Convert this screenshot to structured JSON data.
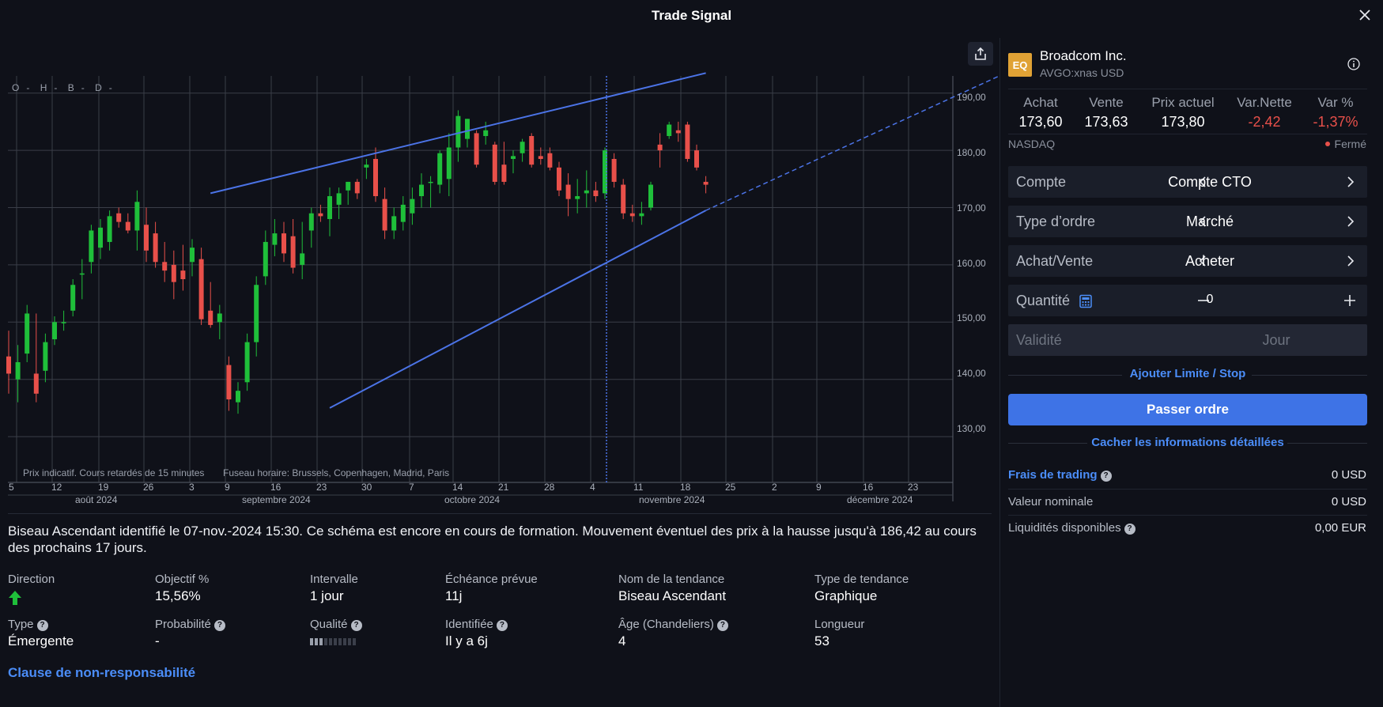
{
  "window": {
    "title": "Trade Signal"
  },
  "chart": {
    "ohlc_labels": [
      "O",
      "H",
      "B",
      "D"
    ],
    "note_delayed": "Prix indicatif. Cours retardés de 15 minutes",
    "note_timezone": "Fuseau horaire: Brussels, Copenhagen, Madrid, Paris",
    "y_ticks": [
      "190,00",
      "180,00",
      "170,00",
      "160,00",
      "150,00",
      "140,00",
      "130,00"
    ],
    "x_days": [
      "5",
      "12",
      "19",
      "26",
      "3",
      "9",
      "16",
      "23",
      "30",
      "7",
      "14",
      "21",
      "28",
      "4",
      "11",
      "18",
      "25",
      "2",
      "9",
      "16",
      "23"
    ],
    "x_months": [
      "août 2024",
      "septembre 2024",
      "octobre 2024",
      "novembre 2024",
      "décembre 2024"
    ],
    "up_color": "#1fbf3a",
    "down_color": "#e8504a",
    "line_color": "#4b73e6"
  },
  "chart_data": {
    "type": "candlestick",
    "ylim": [
      122,
      193
    ],
    "y_ticks": [
      130,
      140,
      150,
      160,
      170,
      180,
      190
    ],
    "candles": [
      {
        "o": 144.0,
        "h": 148.5,
        "l": 137.5,
        "c": 141.0
      },
      {
        "o": 140.0,
        "h": 146.0,
        "l": 136.0,
        "c": 143.0
      },
      {
        "o": 144.5,
        "h": 153.0,
        "l": 143.0,
        "c": 151.5
      },
      {
        "o": 141.0,
        "h": 151.5,
        "l": 136.0,
        "c": 137.5
      },
      {
        "o": 141.5,
        "h": 148.0,
        "l": 139.5,
        "c": 146.5
      },
      {
        "o": 147.0,
        "h": 151.0,
        "l": 146.0,
        "c": 150.0
      },
      {
        "o": 150.0,
        "h": 152.0,
        "l": 148.5,
        "c": 150.0
      },
      {
        "o": 152.0,
        "h": 157.5,
        "l": 151.0,
        "c": 156.5
      },
      {
        "o": 158.5,
        "h": 161.0,
        "l": 154.0,
        "c": 158.5
      },
      {
        "o": 160.5,
        "h": 167.0,
        "l": 158.5,
        "c": 166.0
      },
      {
        "o": 163.0,
        "h": 168.0,
        "l": 161.0,
        "c": 166.5
      },
      {
        "o": 164.0,
        "h": 169.5,
        "l": 162.5,
        "c": 168.5
      },
      {
        "o": 169.0,
        "h": 170.0,
        "l": 166.5,
        "c": 167.5
      },
      {
        "o": 167.5,
        "h": 169.0,
        "l": 165.5,
        "c": 166.0
      },
      {
        "o": 166.0,
        "h": 173.0,
        "l": 162.5,
        "c": 171.0
      },
      {
        "o": 167.0,
        "h": 170.0,
        "l": 160.5,
        "c": 162.5
      },
      {
        "o": 165.5,
        "h": 167.5,
        "l": 159.5,
        "c": 160.5
      },
      {
        "o": 160.5,
        "h": 164.0,
        "l": 157.0,
        "c": 159.0
      },
      {
        "o": 160.0,
        "h": 162.5,
        "l": 154.0,
        "c": 157.0
      },
      {
        "o": 159.0,
        "h": 163.5,
        "l": 155.5,
        "c": 157.5
      },
      {
        "o": 160.5,
        "h": 164.5,
        "l": 158.0,
        "c": 163.0
      },
      {
        "o": 161.0,
        "h": 163.0,
        "l": 149.5,
        "c": 150.5
      },
      {
        "o": 152.0,
        "h": 157.0,
        "l": 149.0,
        "c": 149.5
      },
      {
        "o": 150.0,
        "h": 153.0,
        "l": 147.0,
        "c": 151.5
      },
      {
        "o": 142.5,
        "h": 144.0,
        "l": 134.5,
        "c": 136.5
      },
      {
        "o": 136.0,
        "h": 139.5,
        "l": 134.0,
        "c": 138.0
      },
      {
        "o": 139.5,
        "h": 148.0,
        "l": 138.0,
        "c": 146.5
      },
      {
        "o": 146.5,
        "h": 158.0,
        "l": 144.0,
        "c": 156.5
      },
      {
        "o": 158.0,
        "h": 166.0,
        "l": 156.5,
        "c": 164.0
      },
      {
        "o": 163.5,
        "h": 168.0,
        "l": 161.5,
        "c": 165.5
      },
      {
        "o": 165.5,
        "h": 167.5,
        "l": 160.5,
        "c": 162.0
      },
      {
        "o": 165.0,
        "h": 168.0,
        "l": 158.5,
        "c": 159.5
      },
      {
        "o": 160.0,
        "h": 167.5,
        "l": 157.5,
        "c": 162.0
      },
      {
        "o": 166.0,
        "h": 170.0,
        "l": 163.0,
        "c": 169.0
      },
      {
        "o": 169.0,
        "h": 170.5,
        "l": 167.5,
        "c": 168.5
      },
      {
        "o": 168.0,
        "h": 173.5,
        "l": 165.0,
        "c": 172.0
      },
      {
        "o": 170.5,
        "h": 173.5,
        "l": 168.0,
        "c": 172.5
      },
      {
        "o": 173.0,
        "h": 174.5,
        "l": 170.5,
        "c": 174.5
      },
      {
        "o": 174.5,
        "h": 175.0,
        "l": 171.5,
        "c": 172.5
      },
      {
        "o": 177.0,
        "h": 178.5,
        "l": 175.0,
        "c": 177.5
      },
      {
        "o": 178.5,
        "h": 180.5,
        "l": 171.0,
        "c": 172.0
      },
      {
        "o": 171.5,
        "h": 173.5,
        "l": 164.5,
        "c": 166.0
      },
      {
        "o": 166.0,
        "h": 170.0,
        "l": 164.5,
        "c": 168.5
      },
      {
        "o": 167.5,
        "h": 172.0,
        "l": 166.0,
        "c": 170.5
      },
      {
        "o": 169.0,
        "h": 173.5,
        "l": 167.0,
        "c": 171.5
      },
      {
        "o": 172.0,
        "h": 176.0,
        "l": 170.0,
        "c": 174.0
      },
      {
        "o": 174.5,
        "h": 175.5,
        "l": 170.0,
        "c": 174.5
      },
      {
        "o": 174.0,
        "h": 180.0,
        "l": 172.5,
        "c": 179.5
      },
      {
        "o": 175.0,
        "h": 183.0,
        "l": 172.0,
        "c": 180.5
      },
      {
        "o": 180.5,
        "h": 187.0,
        "l": 178.0,
        "c": 186.0
      },
      {
        "o": 182.0,
        "h": 185.5,
        "l": 180.5,
        "c": 185.5
      },
      {
        "o": 183.0,
        "h": 183.5,
        "l": 177.0,
        "c": 177.5
      },
      {
        "o": 182.5,
        "h": 185.0,
        "l": 181.0,
        "c": 183.5
      },
      {
        "o": 181.0,
        "h": 181.5,
        "l": 174.0,
        "c": 174.5
      },
      {
        "o": 177.5,
        "h": 181.5,
        "l": 174.0,
        "c": 174.5
      },
      {
        "o": 178.5,
        "h": 180.0,
        "l": 176.0,
        "c": 179.0
      },
      {
        "o": 179.5,
        "h": 182.0,
        "l": 178.0,
        "c": 181.5
      },
      {
        "o": 182.5,
        "h": 183.0,
        "l": 177.0,
        "c": 177.5
      },
      {
        "o": 179.0,
        "h": 180.5,
        "l": 177.5,
        "c": 178.5
      },
      {
        "o": 179.5,
        "h": 180.5,
        "l": 176.5,
        "c": 177.0
      },
      {
        "o": 177.0,
        "h": 178.0,
        "l": 172.0,
        "c": 173.0
      },
      {
        "o": 174.0,
        "h": 176.0,
        "l": 168.5,
        "c": 171.5
      },
      {
        "o": 171.5,
        "h": 175.0,
        "l": 169.0,
        "c": 172.0
      },
      {
        "o": 172.5,
        "h": 176.5,
        "l": 170.0,
        "c": 173.0
      },
      {
        "o": 173.0,
        "h": 174.5,
        "l": 171.0,
        "c": 172.0
      },
      {
        "o": 172.5,
        "h": 180.5,
        "l": 171.5,
        "c": 180.0
      },
      {
        "o": 178.5,
        "h": 179.5,
        "l": 173.5,
        "c": 174.5
      },
      {
        "o": 174.0,
        "h": 175.0,
        "l": 168.0,
        "c": 169.0
      },
      {
        "o": 169.0,
        "h": 170.5,
        "l": 167.5,
        "c": 168.5
      },
      {
        "o": 168.5,
        "h": 171.0,
        "l": 167.0,
        "c": 169.0
      },
      {
        "o": 170.0,
        "h": 174.5,
        "l": 169.5,
        "c": 174.0
      },
      {
        "o": 181.0,
        "h": 183.0,
        "l": 177.0,
        "c": 180.0
      },
      {
        "o": 182.5,
        "h": 185.0,
        "l": 182.0,
        "c": 184.5
      },
      {
        "o": 183.5,
        "h": 185.0,
        "l": 181.5,
        "c": 183.0
      },
      {
        "o": 184.5,
        "h": 185.0,
        "l": 178.0,
        "c": 178.5
      },
      {
        "o": 180.0,
        "h": 181.0,
        "l": 176.5,
        "c": 177.0
      },
      {
        "o": 174.5,
        "h": 175.5,
        "l": 172.5,
        "c": 174.0
      }
    ],
    "trend_lines": [
      {
        "name": "upper",
        "from": [
          22,
          172.5
        ],
        "to": [
          76,
          193.5
        ],
        "style": "solid"
      },
      {
        "name": "lower",
        "from": [
          35,
          135.0
        ],
        "to": [
          76,
          169.5
        ],
        "style": "solid"
      },
      {
        "name": "projection",
        "from": [
          76,
          169.5
        ],
        "to": [
          108,
          193.0
        ],
        "style": "dashed"
      }
    ]
  },
  "signal": {
    "description": "Biseau Ascendant identifié le 07-nov.-2024 15:30. Ce schéma est encore en cours de formation. Mouvement éventuel des prix à la hausse jusqu'à 186,42 au cours des prochains 17 jours.",
    "stats_row1": [
      {
        "label": "Direction",
        "value": ""
      },
      {
        "label": "Objectif %",
        "value": "15,56%"
      },
      {
        "label": "Intervalle",
        "value": "1 jour"
      },
      {
        "label": "Échéance prévue",
        "value": "11j"
      },
      {
        "label": "Nom de la tendance",
        "value": "Biseau Ascendant"
      },
      {
        "label": "Type de tendance",
        "value": "Graphique"
      }
    ],
    "stats_row2": [
      {
        "label": "Type",
        "value": "Émergente"
      },
      {
        "label": "Probabilité",
        "value": "-"
      },
      {
        "label": "Qualité",
        "value": ""
      },
      {
        "label": "Identifiée",
        "value": "Il y a 6j"
      },
      {
        "label": "Âge (Chandeliers)",
        "value": "4"
      },
      {
        "label": "Longueur",
        "value": "53"
      }
    ],
    "quality_level": 0.3,
    "disclaimer": "Clause de non-responsabilité"
  },
  "instrument": {
    "badge": "EQ",
    "name": "Broadcom Inc.",
    "ticker": "AVGO:xnas USD",
    "quote_headers": [
      "Achat",
      "Vente",
      "Prix actuel",
      "Var.Nette",
      "Var %"
    ],
    "quote_values": [
      "173,60",
      "173,63",
      "173,80",
      "-2,42",
      "-1,37%"
    ],
    "exchange": "NASDAQ",
    "market_status": "Fermé",
    "badge_color": "#e0a235"
  },
  "order": {
    "rows": [
      {
        "label": "Compte",
        "value": "Compte CTO"
      },
      {
        "label": "Type d’ordre",
        "value": "Marché"
      },
      {
        "label": "Achat/Vente",
        "value": "Acheter"
      }
    ],
    "quantity_label": "Quantité",
    "quantity_value": "0",
    "validity_label": "Validité",
    "validity_value": "Jour",
    "add_limit": "Ajouter Limite / Stop",
    "submit": "Passer ordre",
    "hide_details": "Cacher les informations détaillées",
    "accent_color": "#3e73e6"
  },
  "details": [
    {
      "label": "Frais de trading",
      "value": "0 USD"
    },
    {
      "label": "Valeur nominale",
      "value": "0 USD"
    },
    {
      "label": "Liquidités disponibles",
      "value": "0,00 EUR"
    }
  ]
}
